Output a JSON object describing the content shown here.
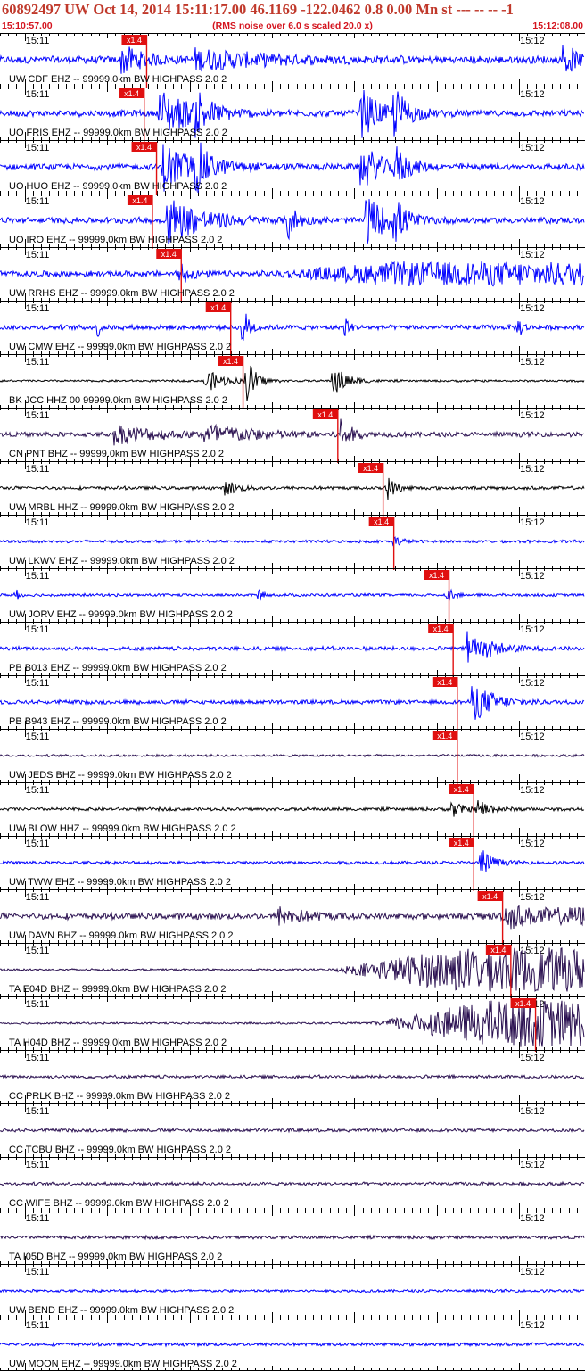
{
  "header": {
    "title": "60892497 UW Oct 14, 2014 15:11:17.00   46.1169 -122.0462  0.8 0.00 Mn st --- -- --  -1",
    "start_time": "15:10:57.00",
    "noise_note": "(RMS noise over 6.0 s scaled 20.0 x)",
    "end_time": "15:12:08.00"
  },
  "chart_data": {
    "type": "line",
    "title": "60892497 UW Oct 14, 2014 15:11:17.00   46.1169 -122.0462  0.8 0.00 Mn st --- -- --  -1",
    "time_start": "15:10:57.00",
    "time_end": "15:12:08.00",
    "tick_labels": [
      "15:11",
      "15:12"
    ],
    "tick_times_sec_from_start": [
      3,
      63
    ],
    "duration_sec": 71,
    "pick_label": "x1.4",
    "colors": {
      "header": "#c0392b",
      "subheader": "#d4141e",
      "pick": "#e01010",
      "blue": "#0000ff",
      "black": "#000000",
      "purple": "#2a1050"
    },
    "traces": [
      {
        "label": "UW CDF EHZ -- 99999.0km BW  HIGHPASS  2.0  2",
        "color": "#0000ff",
        "pick_sec": 17.8,
        "amp": 0.18,
        "bursts": [
          [
            15,
            0.6,
            2.5
          ],
          [
            24,
            0.4,
            8
          ],
          [
            68.5,
            0.8,
            1.2
          ]
        ],
        "emergent": null
      },
      {
        "label": "UO FRIS EHZ -- 99999.0km BW  HIGHPASS  2.0  2",
        "color": "#0000ff",
        "pick_sec": 17.5,
        "amp": 0.15,
        "bursts": [
          [
            19.5,
            1.0,
            4
          ],
          [
            24,
            0.9,
            1.2
          ],
          [
            44,
            1.0,
            2
          ],
          [
            48,
            1.0,
            1.5
          ]
        ],
        "emergent": null
      },
      {
        "label": "UO HUO EHZ -- 99999.0km BW  HIGHPASS  2.0  2",
        "color": "#0000ff",
        "pick_sec": 19.0,
        "amp": 0.15,
        "bursts": [
          [
            19.8,
            1.0,
            4
          ],
          [
            24,
            0.8,
            1.2
          ],
          [
            44,
            1.0,
            2
          ],
          [
            48,
            0.8,
            1.5
          ]
        ],
        "emergent": null
      },
      {
        "label": "UO IRO EHZ -- 99999.0km BW  HIGHPASS  2.0  2",
        "color": "#0000ff",
        "pick_sec": 18.5,
        "amp": 0.15,
        "bursts": [
          [
            20.5,
            1.0,
            4
          ],
          [
            35,
            0.8,
            1
          ],
          [
            44.5,
            1.0,
            2.5
          ],
          [
            48,
            0.7,
            1.2
          ]
        ],
        "emergent": null
      },
      {
        "label": "UW RRHS EHZ -- 99999.0km BW  HIGHPASS  2.0  2",
        "color": "#0000ff",
        "pick_sec": 22.0,
        "amp": 0.15,
        "bursts": [
          [
            22,
            0.5,
            1
          ]
        ],
        "emergent": [
          33,
          0.4
        ]
      },
      {
        "label": "UW CMW EHZ -- 99999.0km BW  HIGHPASS  2.0  2",
        "color": "#0000ff",
        "pick_sec": 28.0,
        "amp": 0.12,
        "bursts": [
          [
            29.5,
            0.9,
            0.8
          ],
          [
            12,
            0.5,
            0.3
          ],
          [
            42,
            0.4,
            0.5
          ],
          [
            63,
            0.4,
            0.5
          ]
        ],
        "emergent": null
      },
      {
        "label": "BK JCC HHZ 00 99999.0km BW  HIGHPASS  2.0  2",
        "color": "#000000",
        "pick_sec": 29.5,
        "amp": 0.05,
        "bursts": [
          [
            25,
            0.5,
            2
          ],
          [
            30,
            1.0,
            1
          ],
          [
            40.5,
            0.7,
            1.5
          ]
        ],
        "emergent": null
      },
      {
        "label": "CN PNT BHZ -- 99999.0km BW  HIGHPASS  2.0  2",
        "color": "#2a1050",
        "pick_sec": 41.0,
        "amp": 0.12,
        "bursts": [
          [
            14,
            0.4,
            5
          ],
          [
            25,
            0.4,
            6
          ],
          [
            41.5,
            1.0,
            0.8
          ]
        ],
        "emergent": null
      },
      {
        "label": "UW MRBL HHZ -- 99999.0km BW  HIGHPASS  2.0  2",
        "color": "#000000",
        "pick_sec": 46.5,
        "amp": 0.08,
        "bursts": [
          [
            27.5,
            0.3,
            1.5
          ],
          [
            47,
            0.5,
            1
          ]
        ],
        "emergent": null
      },
      {
        "label": "UW LKWV EHZ -- 99999.0km BW  HIGHPASS  2.0  2",
        "color": "#0000ff",
        "pick_sec": 47.8,
        "amp": 0.07,
        "bursts": [
          [
            48,
            0.2,
            1
          ]
        ],
        "emergent": null
      },
      {
        "label": "UW JORV EHZ -- 99999.0km BW  HIGHPASS  2.0  2",
        "color": "#0000ff",
        "pick_sec": 54.5,
        "amp": 0.07,
        "bursts": [
          [
            54.5,
            0.3,
            0.6
          ],
          [
            31.5,
            0.3,
            0.3
          ],
          [
            2,
            0.3,
            0.3
          ]
        ],
        "emergent": null
      },
      {
        "label": "PB B013 EHZ -- 99999.0km BW  HIGHPASS  2.0  2",
        "color": "#0000ff",
        "pick_sec": 55.0,
        "amp": 0.1,
        "bursts": [
          [
            57,
            0.8,
            2.5
          ]
        ],
        "emergent": null
      },
      {
        "label": "PB B943 EHZ -- 99999.0km BW  HIGHPASS  2.0  2",
        "color": "#0000ff",
        "pick_sec": 55.5,
        "amp": 0.1,
        "bursts": [
          [
            57.5,
            0.8,
            2.5
          ]
        ],
        "emergent": null
      },
      {
        "label": "UW JEDS BHZ -- 99999.0km BW  HIGHPASS  2.0  2",
        "color": "#2a1050",
        "pick_sec": 55.5,
        "amp": 0.06,
        "bursts": [],
        "emergent": null
      },
      {
        "label": "UW BLOW HHZ -- 99999.0km BW  HIGHPASS  2.0  2",
        "color": "#000000",
        "pick_sec": 57.5,
        "amp": 0.08,
        "bursts": [
          [
            55,
            0.35,
            1
          ],
          [
            58,
            0.4,
            1.5
          ]
        ],
        "emergent": null
      },
      {
        "label": "UW TWW EHZ -- 99999.0km BW  HIGHPASS  2.0  2",
        "color": "#0000ff",
        "pick_sec": 57.5,
        "amp": 0.08,
        "bursts": [
          [
            58.5,
            0.6,
            1.2
          ]
        ],
        "emergent": null
      },
      {
        "label": "UW DAVN BHZ -- 99999.0km BW  HIGHPASS  2.0  2",
        "color": "#2a1050",
        "pick_sec": 61.0,
        "amp": 0.15,
        "bursts": [
          [
            34,
            0.35,
            3
          ],
          [
            61.5,
            0.5,
            2
          ]
        ],
        "emergent": [
          58,
          0.35
        ]
      },
      {
        "label": "TA E04D BHZ -- 99999.0km BW  HIGHPASS  2.0  2",
        "color": "#2a1050",
        "pick_sec": 62.0,
        "amp": 0.05,
        "bursts": [],
        "emergent": [
          40,
          0.9
        ]
      },
      {
        "label": "TA H04D BHZ -- 99999.0km BW  HIGHPASS  2.0  2",
        "color": "#2a1050",
        "pick_sec": 65.0,
        "amp": 0.05,
        "bursts": [],
        "emergent": [
          45,
          1.0
        ]
      },
      {
        "label": "CC PRLK BHZ -- 99999.0km BW  HIGHPASS  2.0  2",
        "color": "#2a1050",
        "pick_sec": null,
        "amp": 0.08,
        "bursts": [],
        "emergent": null
      },
      {
        "label": "CC TCBU BHZ -- 99999.0km BW  HIGHPASS  2.0  2",
        "color": "#2a1050",
        "pick_sec": null,
        "amp": 0.08,
        "bursts": [],
        "emergent": null
      },
      {
        "label": "CC WIFE BHZ -- 99999.0km BW  HIGHPASS  2.0  2",
        "color": "#2a1050",
        "pick_sec": null,
        "amp": 0.08,
        "bursts": [],
        "emergent": null
      },
      {
        "label": "TA I05D BHZ -- 99999.0km BW  HIGHPASS  2.0  2",
        "color": "#2a1050",
        "pick_sec": null,
        "amp": 0.08,
        "bursts": [],
        "emergent": null
      },
      {
        "label": "UW BEND EHZ -- 99999.0km BW  HIGHPASS  2.0  2",
        "color": "#0000ff",
        "pick_sec": null,
        "amp": 0.07,
        "bursts": [],
        "emergent": null
      },
      {
        "label": "UW MOON EHZ -- 99999.0km BW  HIGHPASS  2.0  2",
        "color": "#0000ff",
        "pick_sec": null,
        "amp": 0.08,
        "bursts": [],
        "emergent": null
      }
    ]
  }
}
